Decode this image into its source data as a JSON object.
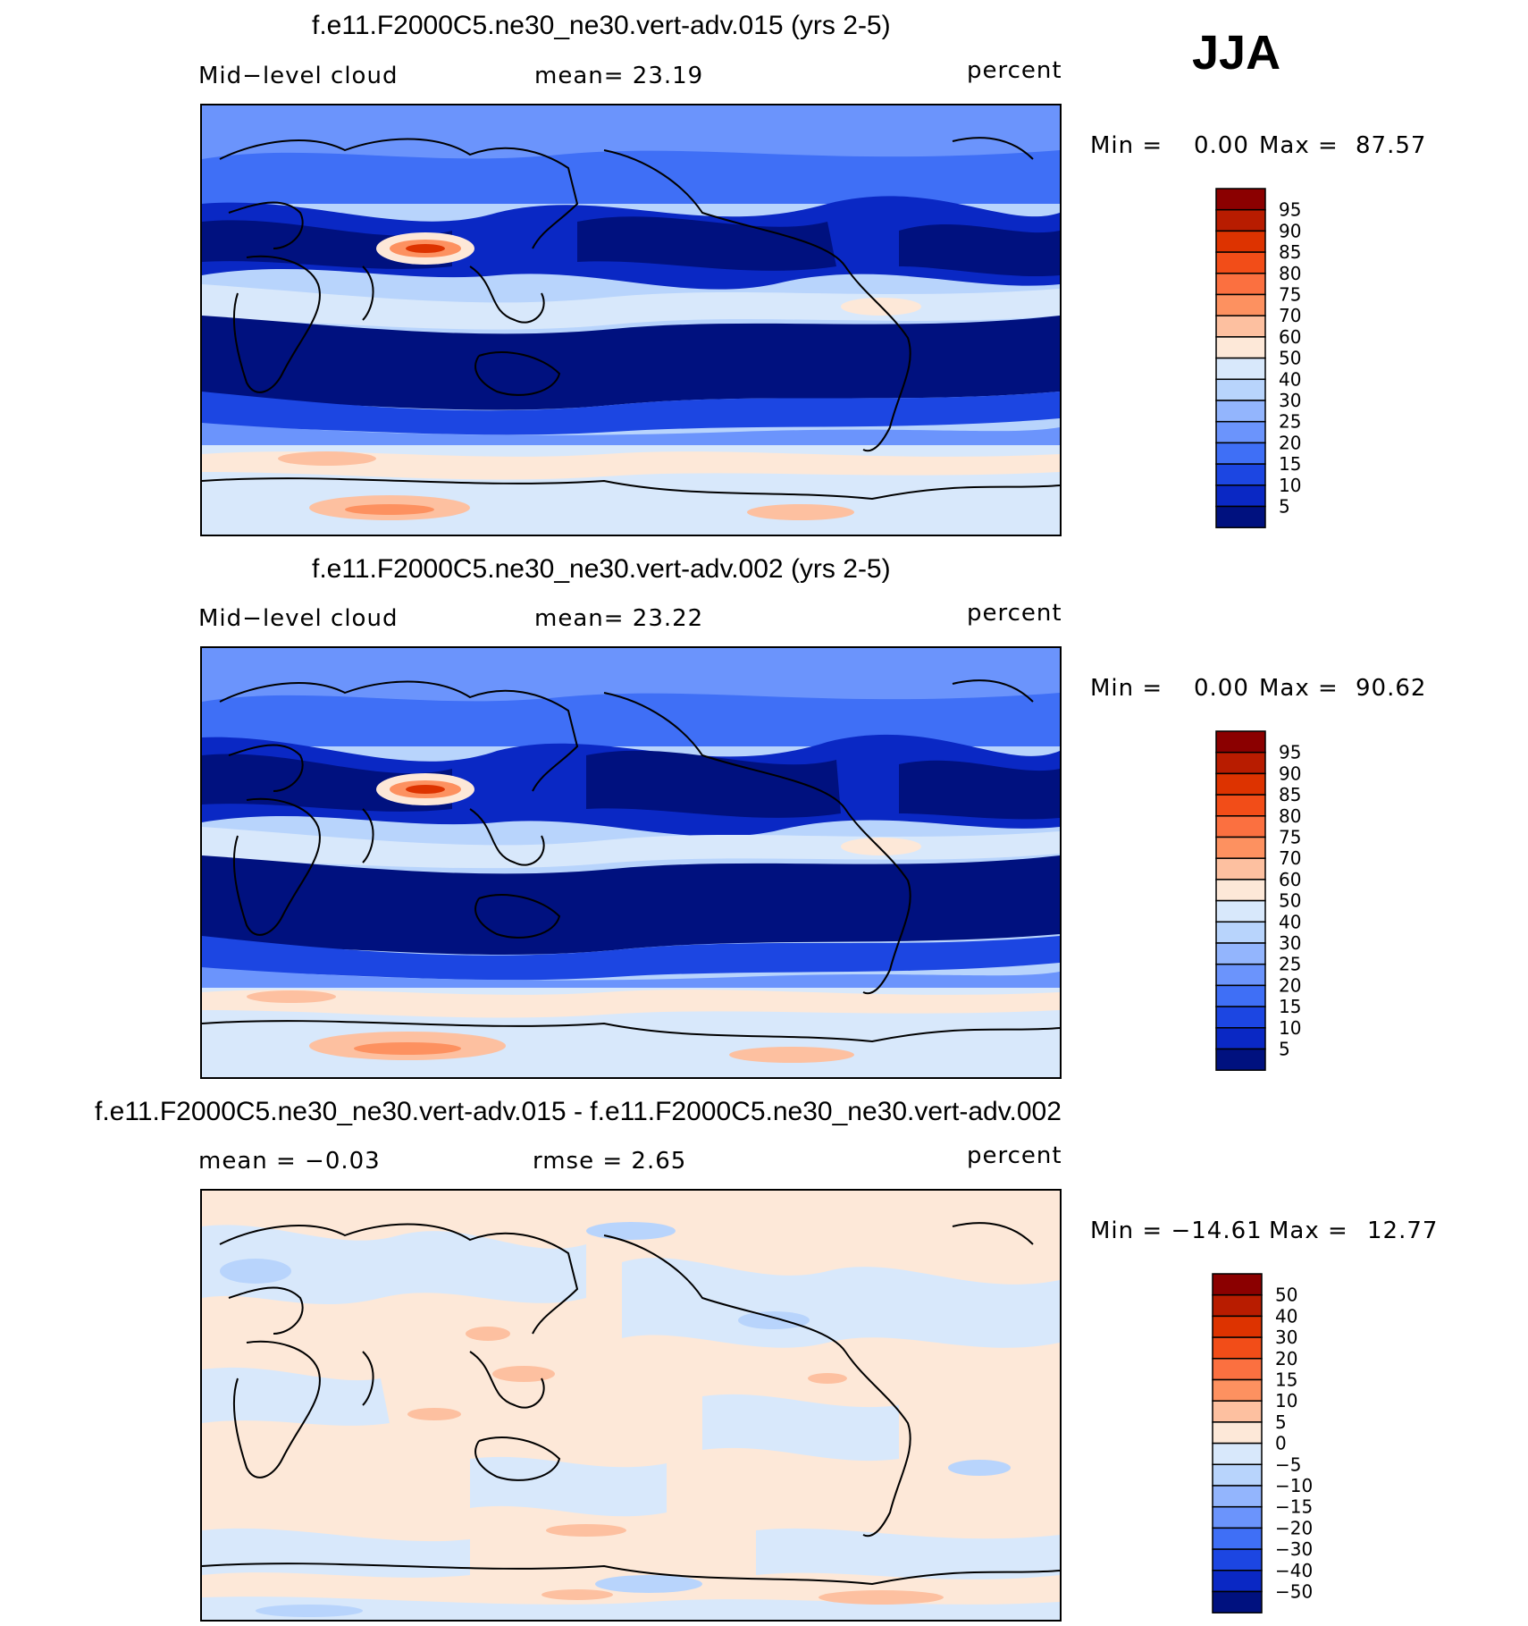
{
  "season": "JJA",
  "panels": [
    {
      "title": "f.e11.F2000C5.ne30_ne30.vert-adv.015 (yrs 2-5)",
      "left_label": "Mid−level  cloud",
      "center_label": "mean=   23.19",
      "units": "percent",
      "min_label": "Min  =",
      "min_value": "0.00",
      "max_label": "Max  =",
      "max_value": "87.57",
      "colorbar_labels": [
        "95",
        "90",
        "85",
        "80",
        "75",
        "70",
        "60",
        "50",
        "40",
        "30",
        "25",
        "20",
        "15",
        "10",
        "5"
      ],
      "colorbar_colors": [
        "#8b0000",
        "#b81c00",
        "#dd3300",
        "#f24d18",
        "#fb7040",
        "#fd9160",
        "#fdc0a0",
        "#fde8d8",
        "#d8e8fb",
        "#b8d4fc",
        "#93b5fd",
        "#6b94fc",
        "#3f6ff6",
        "#1c46e2",
        "#0a28c4",
        "#00117f"
      ]
    },
    {
      "title": "f.e11.F2000C5.ne30_ne30.vert-adv.002 (yrs 2-5)",
      "left_label": "Mid−level  cloud",
      "center_label": "mean=   23.22",
      "units": "percent",
      "min_label": "Min  =",
      "min_value": "0.00",
      "max_label": "Max  =",
      "max_value": "90.62",
      "colorbar_labels": [
        "95",
        "90",
        "85",
        "80",
        "75",
        "70",
        "60",
        "50",
        "40",
        "30",
        "25",
        "20",
        "15",
        "10",
        "5"
      ],
      "colorbar_colors": [
        "#8b0000",
        "#b81c00",
        "#dd3300",
        "#f24d18",
        "#fb7040",
        "#fd9160",
        "#fdc0a0",
        "#fde8d8",
        "#d8e8fb",
        "#b8d4fc",
        "#93b5fd",
        "#6b94fc",
        "#3f6ff6",
        "#1c46e2",
        "#0a28c4",
        "#00117f"
      ]
    },
    {
      "title": "f.e11.F2000C5.ne30_ne30.vert-adv.015 - f.e11.F2000C5.ne30_ne30.vert-adv.002",
      "left_label": "mean  =    −0.03",
      "center_label": "rmse  =     2.65",
      "units": "percent",
      "min_label": "Min  = −14.61",
      "min_value": "",
      "max_label": "Max  =",
      "max_value": "12.77",
      "colorbar_labels": [
        "50",
        "40",
        "30",
        "20",
        "15",
        "10",
        "5",
        "0",
        "−5",
        "−10",
        "−15",
        "−20",
        "−30",
        "−40",
        "−50"
      ],
      "colorbar_colors": [
        "#8b0000",
        "#b81c00",
        "#dd3300",
        "#f24d18",
        "#fb7040",
        "#fd9160",
        "#fdc0a0",
        "#fde8d8",
        "#d8e8fb",
        "#b8d4fc",
        "#93b5fd",
        "#6b94fc",
        "#3f6ff6",
        "#1c46e2",
        "#0a28c4",
        "#00117f"
      ]
    }
  ]
}
